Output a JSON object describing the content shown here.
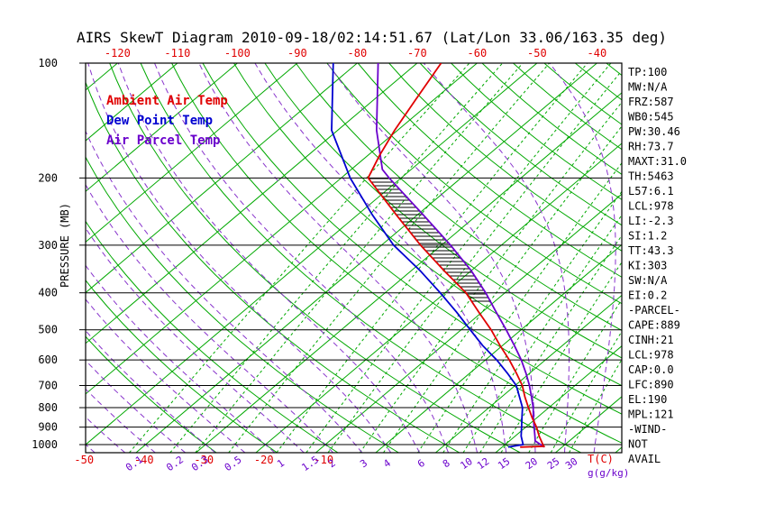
{
  "title": "AIRS SkewT Diagram 2010-09-18/02:14:51.67 (Lat/Lon 33.06/163.35 deg)",
  "colors": {
    "temperature": "#e00000",
    "dewpoint": "#0000d0",
    "parcel": "#6a00cc",
    "moist_adiabat": "#8833cc",
    "mixing_label": "#6a00cc",
    "grid_green": "#00a800",
    "axis_black": "#000000"
  },
  "legend": [
    {
      "label": "Ambient Air Temp",
      "color_key": "temperature"
    },
    {
      "label": "Dew Point Temp",
      "color_key": "dewpoint"
    },
    {
      "label": "Air Parcel Temp",
      "color_key": "parcel"
    }
  ],
  "axes": {
    "pressure_label": "PRESSURE (MB)",
    "pressure_ticks": [
      100,
      200,
      300,
      400,
      500,
      600,
      700,
      800,
      900,
      1000
    ],
    "top_temp_ticks": [
      -120,
      -110,
      -100,
      -90,
      -80,
      -70,
      -60,
      -50,
      -40
    ],
    "bottom_temp_ticks": [
      -50,
      -40,
      -30,
      -20,
      -10
    ],
    "temp_unit_label": "T(C)",
    "mixing_ratio_ticks": [
      0.1,
      0.2,
      0.3,
      0.5,
      1,
      1.5,
      2,
      3,
      4,
      6,
      8,
      10,
      12,
      15,
      20,
      25,
      30
    ],
    "mixing_unit_label": "g(g/kg)"
  },
  "stats_panel": [
    "TP:100",
    "MW:N/A",
    "FRZ:587",
    "WB0:545",
    "PW:30.46",
    "RH:73.7",
    "MAXT:31.0",
    "TH:5463",
    "L57:6.1",
    "LCL:978",
    "LI:-2.3",
    "SI:1.2",
    "TT:43.3",
    "KI:303",
    "SW:N/A",
    "EI:0.2",
    "-PARCEL-",
    "CAPE:889",
    "CINH:21",
    "LCL:978",
    "CAP:0.0",
    "LFC:890",
    "EL:190",
    "MPL:121",
    "-WIND-",
    "NOT",
    "AVAIL"
  ],
  "chart_data": {
    "type": "line",
    "subtype": "skewt_log_p",
    "title": "AIRS SkewT Diagram 2010-09-18/02:14:51.67 (Lat/Lon 33.06/163.35 deg)",
    "ylabel": "PRESSURE (MB)",
    "xlabel": "T(C)",
    "pressure_range_mb": [
      100,
      1050
    ],
    "pressure_axis": "log",
    "isotherm_step_c": 10,
    "isotherm_range_c": [
      -160,
      50
    ],
    "dry_adiabats_theta_c": [
      -30,
      -20,
      -10,
      0,
      10,
      20,
      30,
      40,
      50,
      60,
      70,
      80,
      90,
      100,
      110,
      120,
      130,
      140,
      150,
      160,
      170,
      180,
      190
    ],
    "moist_adiabats_tw_c": [
      -60,
      -55,
      -50,
      -45,
      -40,
      -35,
      -30,
      -25,
      -20,
      -15,
      -10,
      -5,
      0,
      5,
      10,
      15,
      20,
      25,
      30,
      35,
      40
    ],
    "mixing_ratio_lines_g_kg": [
      0.1,
      0.2,
      0.3,
      0.5,
      1,
      1.5,
      2,
      3,
      4,
      6,
      8,
      10,
      12,
      15,
      20,
      25,
      30
    ],
    "cape_hatch_between_mb": [
      200,
      430
    ],
    "series": [
      {
        "name": "Dew Point Temp",
        "color_key": "dewpoint",
        "points_p_t": [
          [
            1015,
            21.0
          ],
          [
            1000,
            23.0
          ],
          [
            950,
            21.0
          ],
          [
            900,
            19.3
          ],
          [
            850,
            17.5
          ],
          [
            800,
            15.6
          ],
          [
            750,
            13.0
          ],
          [
            700,
            10.2
          ],
          [
            650,
            6.3
          ],
          [
            600,
            1.9
          ],
          [
            550,
            -3.3
          ],
          [
            500,
            -8.5
          ],
          [
            450,
            -14.2
          ],
          [
            400,
            -20.8
          ],
          [
            350,
            -28.5
          ],
          [
            300,
            -38.0
          ],
          [
            250,
            -47.5
          ],
          [
            200,
            -58.5
          ],
          [
            150,
            -71.0
          ],
          [
            100,
            -84.0
          ]
        ]
      },
      {
        "name": "Air Parcel Temp",
        "color_key": "parcel",
        "points_p_t": [
          [
            1015,
            27.0
          ],
          [
            978,
            24.3
          ],
          [
            950,
            23.3
          ],
          [
            900,
            21.4
          ],
          [
            850,
            19.4
          ],
          [
            800,
            17.4
          ],
          [
            750,
            15.0
          ],
          [
            700,
            12.4
          ],
          [
            650,
            9.4
          ],
          [
            600,
            6.0
          ],
          [
            550,
            2.0
          ],
          [
            500,
            -2.5
          ],
          [
            450,
            -7.6
          ],
          [
            400,
            -13.2
          ],
          [
            350,
            -20.0
          ],
          [
            300,
            -28.5
          ],
          [
            250,
            -39.0
          ],
          [
            200,
            -52.0
          ],
          [
            190,
            -54.8
          ],
          [
            150,
            -63.5
          ],
          [
            100,
            -76.5
          ]
        ]
      },
      {
        "name": "Ambient Air Temp",
        "color_key": "temperature",
        "points_p_t": [
          [
            1015,
            23.0
          ],
          [
            1010,
            26.8
          ],
          [
            1000,
            26.3
          ],
          [
            950,
            24.0
          ],
          [
            900,
            21.8
          ],
          [
            850,
            19.2
          ],
          [
            800,
            16.6
          ],
          [
            750,
            13.9
          ],
          [
            700,
            11.2
          ],
          [
            650,
            7.8
          ],
          [
            600,
            4.0
          ],
          [
            550,
            -0.4
          ],
          [
            500,
            -5.0
          ],
          [
            450,
            -10.5
          ],
          [
            400,
            -16.5
          ],
          [
            350,
            -24.5
          ],
          [
            300,
            -33.5
          ],
          [
            250,
            -43.5
          ],
          [
            200,
            -55.5
          ],
          [
            175,
            -58.0
          ],
          [
            150,
            -60.5
          ],
          [
            125,
            -63.0
          ],
          [
            100,
            -66.0
          ]
        ]
      }
    ]
  }
}
